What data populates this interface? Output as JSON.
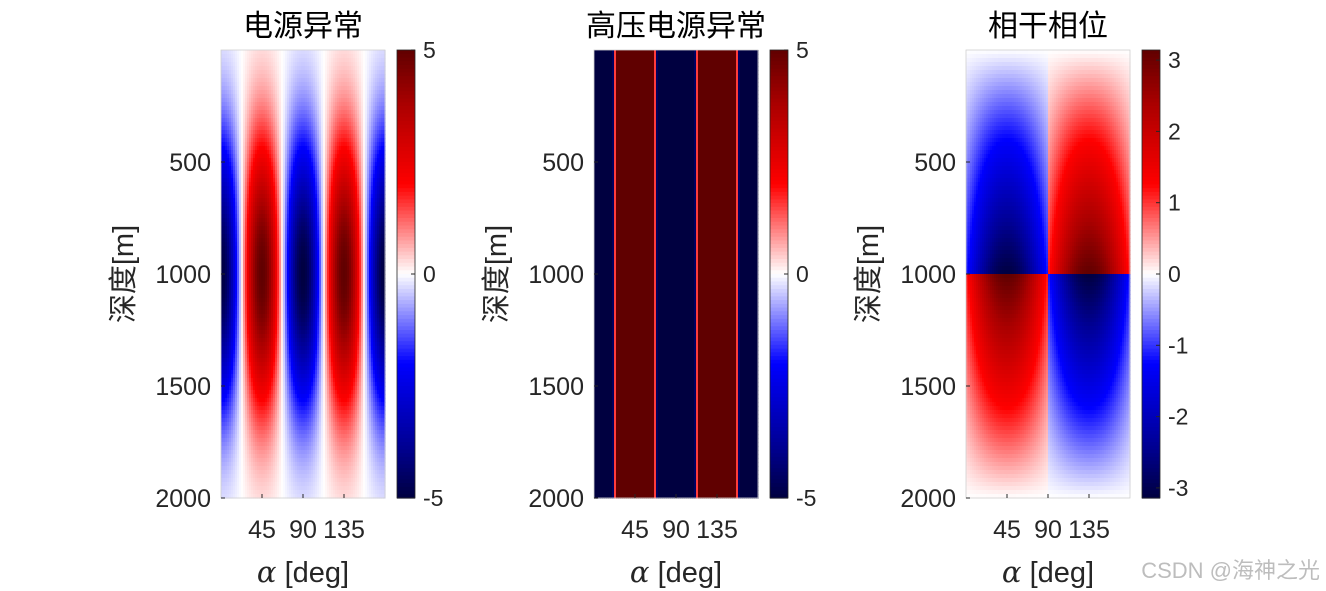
{
  "chart_data": [
    {
      "type": "heatmap",
      "title": "电源异常",
      "xlabel_symbol": "α",
      "xlabel_unit": " [deg]",
      "ylabel": "深度[m]",
      "xlim": [
        0,
        180
      ],
      "ylim": [
        0,
        2000
      ],
      "y_reversed": true,
      "xticks": [
        45,
        90,
        135
      ],
      "yticks": [
        500,
        1000,
        1500,
        2000
      ],
      "colorbar": {
        "limits": [
          -5,
          5
        ],
        "ticks": [
          -5,
          0,
          5
        ],
        "colormap": "blue-white-red"
      },
      "field": {
        "kind": "cos",
        "amplitude": 5,
        "cycles_per_180deg": 2,
        "phase_deg": 90,
        "depth_center": 1000,
        "depth_sigma": 420
      }
    },
    {
      "type": "heatmap",
      "title": "高压电源异常",
      "xlabel_symbol": "α",
      "xlabel_unit": " [deg]",
      "ylabel": "深度[m]",
      "xlim": [
        0,
        180
      ],
      "ylim": [
        0,
        2000
      ],
      "y_reversed": true,
      "xticks": [
        45,
        90,
        135
      ],
      "yticks": [
        500,
        1000,
        1500,
        2000
      ],
      "colorbar": {
        "limits": [
          -5,
          5
        ],
        "ticks": [
          -5,
          0,
          5
        ],
        "colormap": "blue-white-red"
      },
      "field": {
        "kind": "cos_saturated",
        "amplitude": 40,
        "cycles_per_180deg": 2,
        "phase_deg": 0
      }
    },
    {
      "type": "heatmap",
      "title": "相干相位",
      "xlabel_symbol": "α",
      "xlabel_unit": " [deg]",
      "ylabel": "深度[m]",
      "xlim": [
        0,
        180
      ],
      "ylim": [
        0,
        2000
      ],
      "y_reversed": true,
      "xticks": [
        45,
        90,
        135
      ],
      "yticks": [
        500,
        1000,
        1500,
        2000
      ],
      "colorbar": {
        "limits": [
          -3.14159,
          3.14159
        ],
        "ticks": [
          -3,
          -2,
          -1,
          0,
          1,
          2,
          3
        ],
        "colormap": "blue-white-red"
      },
      "field": {
        "kind": "phase",
        "amplitude": 3.14159,
        "depth_center": 1000,
        "x_sign_break_deg": 90
      }
    }
  ],
  "watermark": "CSDN @海神之光"
}
